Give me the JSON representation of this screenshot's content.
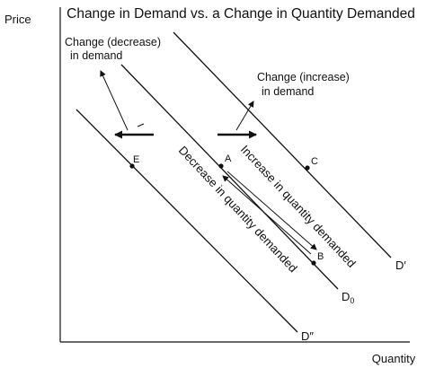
{
  "title": "Change in Demand vs. a Change in Quantity Demanded",
  "axes": {
    "y_label": "Price",
    "x_label": "Quantity"
  },
  "curves": {
    "d_prime": "D′",
    "d0_base": "D",
    "d0_sub": "0",
    "d_double_prime": "D″"
  },
  "points": {
    "a": "A",
    "b": "B",
    "c": "C",
    "e": "E"
  },
  "annotations": {
    "decrease_line1": "Change (decrease)",
    "decrease_line2": "in demand",
    "increase_line1": "Change (increase)",
    "increase_line2": "in demand",
    "increase_qd": "Increase in quantity demanded",
    "decrease_qd": "Decrease in quantity demanded"
  },
  "colors": {
    "ink": "#111111",
    "background": "#ffffff"
  }
}
